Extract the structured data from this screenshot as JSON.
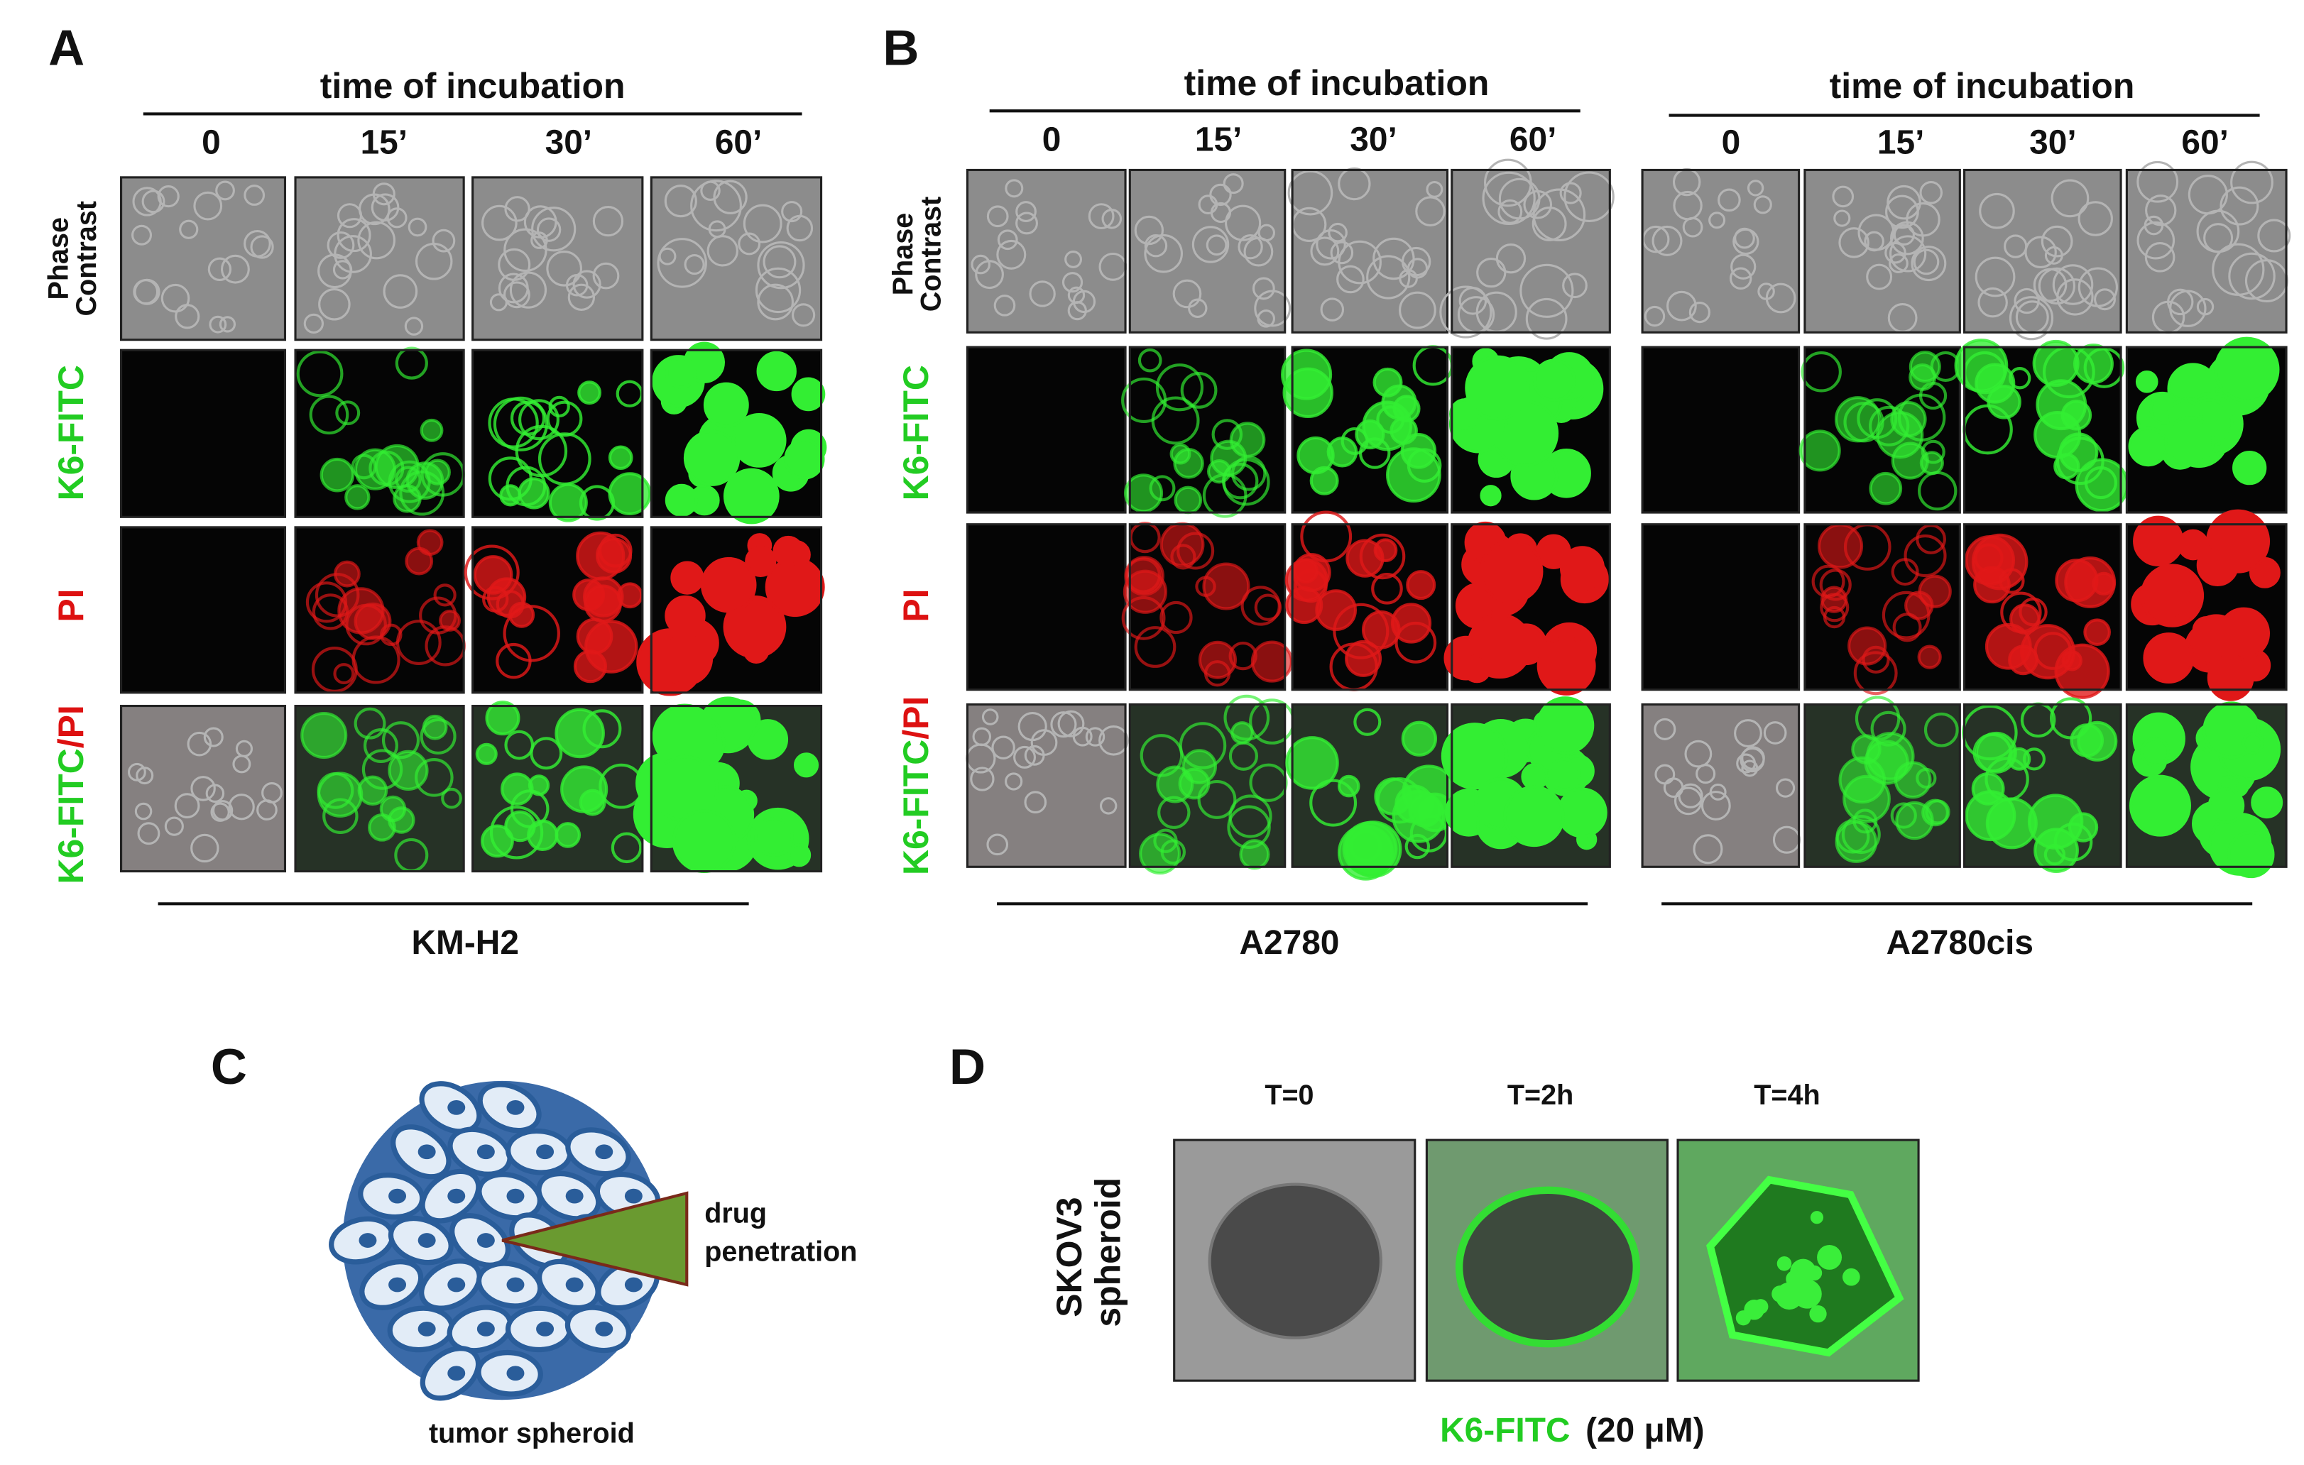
{
  "panel_a": {
    "label": "A",
    "header": "time of incubation",
    "times": [
      "0",
      "15’",
      "30’",
      "60’"
    ],
    "row_labels": [
      [
        "Phase",
        "Contrast"
      ],
      [
        "K6-FITC"
      ],
      [
        "PI"
      ],
      [
        "K6-FITC",
        "/PI"
      ]
    ],
    "cell_line": "KM-H2"
  },
  "panel_b": {
    "label": "B",
    "row_labels": [
      [
        "Phase",
        "Contrast"
      ],
      [
        "K6-FITC"
      ],
      [
        "PI"
      ],
      [
        "K6-FITC",
        "/PI"
      ]
    ],
    "groups": [
      {
        "header": "time of incubation",
        "times": [
          "0",
          "15’",
          "30’",
          "60’"
        ],
        "cell_line": "A2780"
      },
      {
        "header": "time of incubation",
        "times": [
          "0",
          "15’",
          "30’",
          "60’"
        ],
        "cell_line": "A2780cis"
      }
    ]
  },
  "panel_c": {
    "label": "C",
    "annotation": [
      "drug",
      "penetration"
    ],
    "caption": "tumor spheroid"
  },
  "panel_d": {
    "label": "D",
    "times": [
      "T=0",
      "T=2h",
      "T=4h"
    ],
    "row_label": [
      "SKOV3",
      "spheroid"
    ],
    "caption": [
      "K6-FITC",
      "(20 μM)"
    ]
  }
}
